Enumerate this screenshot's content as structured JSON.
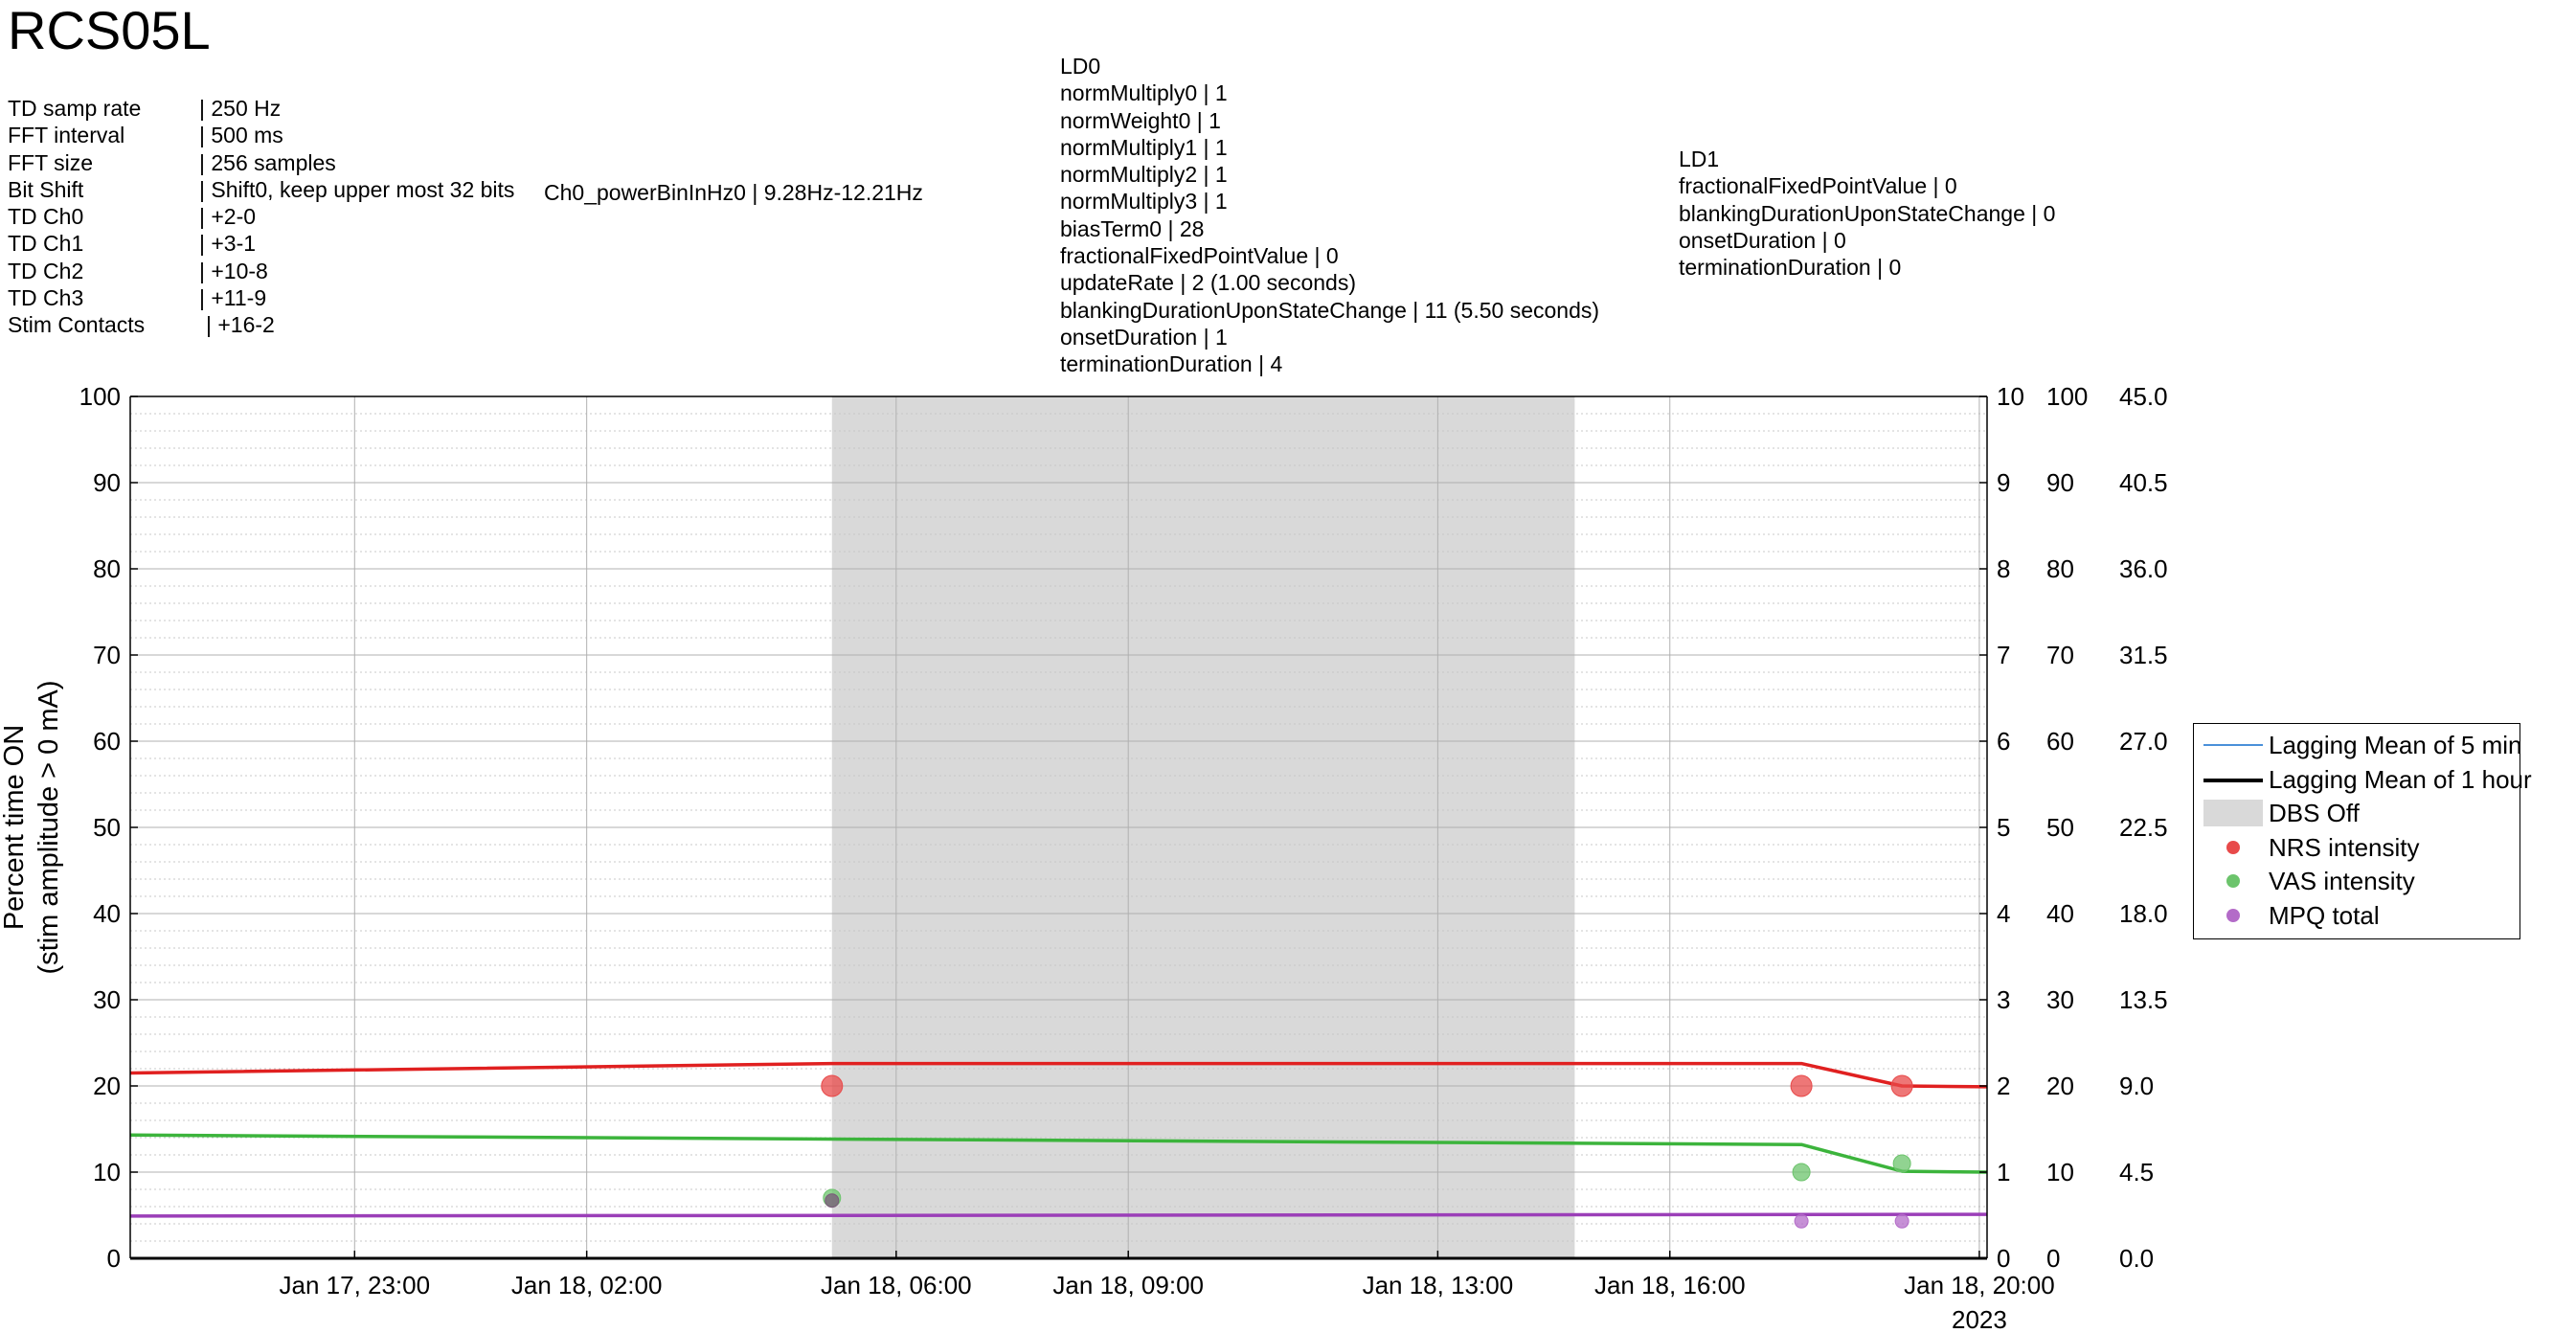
{
  "title": "RCS05L",
  "td_info": [
    {
      "key": "TD samp rate",
      "value": "| 250 Hz"
    },
    {
      "key": "FFT interval",
      "value": "| 500 ms"
    },
    {
      "key": "FFT size",
      "value": "| 256 samples"
    },
    {
      "key": "Bit Shift",
      "value": "| Shift0, keep upper most 32 bits"
    },
    {
      "key": "TD Ch0",
      "value": "| +2-0"
    },
    {
      "key": "TD Ch1",
      "value": "| +3-1"
    },
    {
      "key": "TD Ch2",
      "value": "| +10-8"
    },
    {
      "key": "TD Ch3",
      "value": "| +11-9"
    },
    {
      "key": "Stim Contacts",
      "value": "| +16-2"
    }
  ],
  "ch0_power": "Ch0_powerBinInHz0 | 9.28Hz-12.21Hz",
  "ld0": [
    "LD0",
    "normMultiply0 | 1",
    "normWeight0 | 1",
    "normMultiply1 | 1",
    "normMultiply2 | 1",
    "normMultiply3 | 1",
    "biasTerm0 | 28",
    "fractionalFixedPointValue | 0",
    "updateRate | 2 (1.00 seconds)",
    "blankingDurationUponStateChange | 11 (5.50 seconds)",
    "onsetDuration | 1",
    "terminationDuration | 4"
  ],
  "ld1": [
    "LD1",
    "fractionalFixedPointValue | 0",
    "blankingDurationUponStateChange | 0",
    "onsetDuration | 0",
    "terminationDuration | 0"
  ],
  "legend": [
    {
      "label": "Lagging Mean of 5 min",
      "kind": "line",
      "color": "#4a90d9"
    },
    {
      "label": "Lagging Mean of 1 hour",
      "kind": "line",
      "color": "#000000"
    },
    {
      "label": "DBS Off",
      "kind": "patch",
      "color": "#d9d9d9"
    },
    {
      "label": "NRS intensity",
      "kind": "dot",
      "color": "#e84a4a"
    },
    {
      "label": "VAS intensity",
      "kind": "dot",
      "color": "#6cc46c"
    },
    {
      "label": "MPQ total",
      "kind": "dot",
      "color": "#b36bc8"
    }
  ],
  "chart_data": {
    "type": "line",
    "ylabel": [
      "Percent time ON",
      "(stim amplitude > 0 mA)"
    ],
    "ylim": [
      0,
      100
    ],
    "yticks": [
      "0",
      "10",
      "20",
      "30",
      "40",
      "50",
      "60",
      "70",
      "80",
      "90",
      "100"
    ],
    "right_axes": [
      {
        "ticks": [
          "0",
          "1",
          "2",
          "3",
          "4",
          "5",
          "6",
          "7",
          "8",
          "9",
          "10"
        ]
      },
      {
        "ticks": [
          "0",
          "10",
          "20",
          "30",
          "40",
          "50",
          "60",
          "70",
          "80",
          "90",
          "100"
        ]
      },
      {
        "ticks": [
          "0.0",
          "4.5",
          "9.0",
          "13.5",
          "18.0",
          "22.5",
          "27.0",
          "31.5",
          "36.0",
          "40.5",
          "45.0"
        ]
      }
    ],
    "xlim_hours": [
      20.0,
      44.0
    ],
    "xticks": [
      {
        "hour": 22.9,
        "label": "Jan 17, 23:00"
      },
      {
        "hour": 25.9,
        "label": "Jan 18, 02:00"
      },
      {
        "hour": 29.9,
        "label": "Jan 18, 06:00"
      },
      {
        "hour": 32.9,
        "label": "Jan 18, 09:00"
      },
      {
        "hour": 36.9,
        "label": "Jan 18, 13:00"
      },
      {
        "hour": 39.9,
        "label": "Jan 18, 16:00"
      },
      {
        "hour": 43.9,
        "label": "Jan 18, 20:00"
      }
    ],
    "x_year_label": "2023",
    "grid": true,
    "dbs_off_hours": [
      29.07,
      38.67
    ],
    "series": [
      {
        "name": "NRS intensity",
        "color": "#e02020",
        "x": [
          20.0,
          29.07,
          41.6,
          42.9,
          44.0
        ],
        "y": [
          21.5,
          22.6,
          22.6,
          20.0,
          19.9
        ]
      },
      {
        "name": "VAS intensity",
        "color": "#3cb43c",
        "x": [
          20.0,
          41.6,
          42.9,
          44.0
        ],
        "y": [
          14.3,
          13.2,
          10.1,
          10.0
        ]
      },
      {
        "name": "MPQ total",
        "color": "#9b3fb8",
        "x": [
          20.0,
          44.0
        ],
        "y": [
          4.9,
          5.1
        ]
      }
    ],
    "points": [
      {
        "series": "NRS intensity",
        "color": "#e84a4a",
        "x": 29.07,
        "y": 20.0,
        "size": "large"
      },
      {
        "series": "NRS intensity",
        "color": "#e84a4a",
        "x": 41.6,
        "y": 20.0,
        "size": "large"
      },
      {
        "series": "NRS intensity",
        "color": "#e84a4a",
        "x": 42.9,
        "y": 20.0,
        "size": "large"
      },
      {
        "series": "VAS intensity",
        "color": "#6cc46c",
        "x": 29.07,
        "y": 7.0,
        "size": "medium"
      },
      {
        "series": "VAS intensity",
        "color": "#6cc46c",
        "x": 41.6,
        "y": 10.0,
        "size": "medium"
      },
      {
        "series": "VAS intensity",
        "color": "#6cc46c",
        "x": 42.9,
        "y": 11.0,
        "size": "medium"
      },
      {
        "series": "MPQ total",
        "color": "#7a5a7a",
        "x": 29.07,
        "y": 6.7,
        "size": "small"
      },
      {
        "series": "MPQ total",
        "color": "#b36bc8",
        "x": 41.6,
        "y": 4.3,
        "size": "small"
      },
      {
        "series": "MPQ total",
        "color": "#b36bc8",
        "x": 42.9,
        "y": 4.3,
        "size": "small"
      }
    ]
  }
}
